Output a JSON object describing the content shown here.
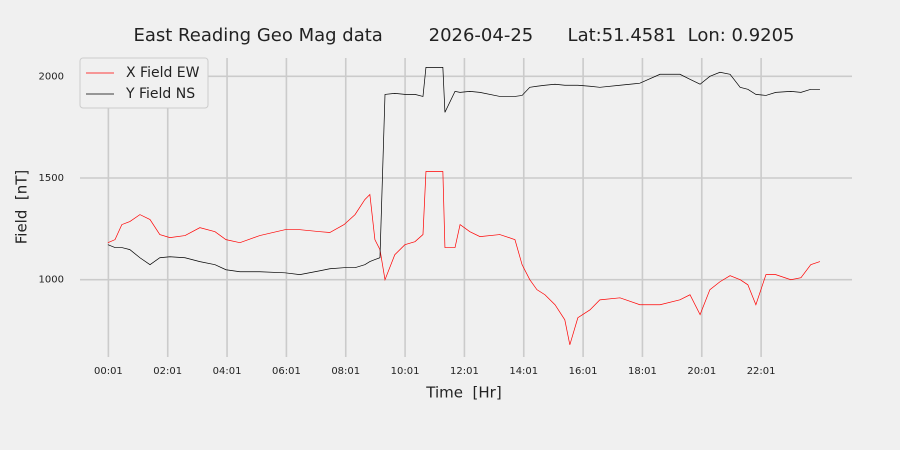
{
  "chart_data": {
    "type": "line",
    "title": "East Reading Geo Mag data        2026-04-25      Lat:51.4581  Lon: 0.9205",
    "xlabel": "Time  [Hr]",
    "ylabel": "Field  [nT]",
    "x": [
      0,
      0.24,
      0.47,
      0.74,
      1.08,
      1.42,
      1.75,
      2.09,
      2.6,
      3.1,
      3.61,
      3.98,
      4.45,
      5.12,
      5.97,
      6.47,
      7.15,
      7.48,
      7.96,
      8.33,
      8.66,
      8.83,
      9.0,
      9.17,
      9.34,
      9.67,
      10.01,
      10.35,
      10.62,
      10.72,
      11.29,
      11.36,
      11.7,
      11.87,
      12.2,
      12.54,
      13.21,
      13.72,
      13.96,
      14.22,
      14.46,
      14.73,
      15.07,
      15.4,
      15.57,
      15.84,
      16.25,
      16.58,
      17.26,
      17.93,
      18.61,
      19.28,
      19.62,
      19.96,
      20.29,
      20.63,
      20.97,
      21.31,
      21.57,
      21.84,
      22.18,
      22.51,
      23.02,
      23.36,
      23.69,
      24.0
    ],
    "series": [
      {
        "name": "X Field EW",
        "color": "#ff0000",
        "values": [
          1182,
          1197,
          1271,
          1286,
          1320,
          1296,
          1222,
          1207,
          1217,
          1256,
          1236,
          1197,
          1182,
          1217,
          1246,
          1246,
          1236,
          1232,
          1271,
          1320,
          1394,
          1419,
          1197,
          1148,
          1000,
          1123,
          1172,
          1187,
          1222,
          1532,
          1532,
          1158,
          1158,
          1271,
          1236,
          1212,
          1222,
          1197,
          1074,
          1000,
          951,
          926,
          877,
          803,
          680,
          813,
          852,
          901,
          911,
          877,
          877,
          901,
          926,
          828,
          951,
          990,
          1020,
          1000,
          975,
          877,
          1025,
          1025,
          1000,
          1010,
          1074,
          1089
        ]
      },
      {
        "name": "Y Field NS",
        "color": "#000000",
        "values": [
          1172,
          1158,
          1158,
          1148,
          1108,
          1074,
          1108,
          1113,
          1108,
          1089,
          1074,
          1049,
          1039,
          1039,
          1034,
          1025,
          1044,
          1054,
          1059,
          1059,
          1074,
          1089,
          1099,
          1108,
          1911,
          1916,
          1911,
          1911,
          1901,
          2044,
          2044,
          1823,
          1926,
          1921,
          1926,
          1921,
          1901,
          1901,
          1906,
          1946,
          1951,
          1956,
          1961,
          1956,
          1956,
          1956,
          1951,
          1946,
          1956,
          1966,
          2010,
          2010,
          1985,
          1961,
          2000,
          2020,
          2010,
          1946,
          1936,
          1911,
          1906,
          1921,
          1926,
          1921,
          1936,
          1936
        ]
      }
    ],
    "xlim": [
      -0.94,
      25.08
    ],
    "xticks": [
      {
        "value": 0.0167,
        "label": "00:01"
      },
      {
        "value": 2.0167,
        "label": "02:01"
      },
      {
        "value": 4.0167,
        "label": "04:01"
      },
      {
        "value": 6.0167,
        "label": "06:01"
      },
      {
        "value": 8.0167,
        "label": "08:01"
      },
      {
        "value": 10.0167,
        "label": "10:01"
      },
      {
        "value": 12.0167,
        "label": "12:01"
      },
      {
        "value": 14.0167,
        "label": "14:01"
      },
      {
        "value": 16.0167,
        "label": "16:01"
      },
      {
        "value": 18.0167,
        "label": "18:01"
      },
      {
        "value": 20.0167,
        "label": "20:01"
      },
      {
        "value": 22.0167,
        "label": "22:01"
      }
    ],
    "ylim": [
      620,
      2090
    ],
    "yticks": [
      1000,
      1500,
      2000
    ],
    "grid": true,
    "legend": "upper left"
  }
}
